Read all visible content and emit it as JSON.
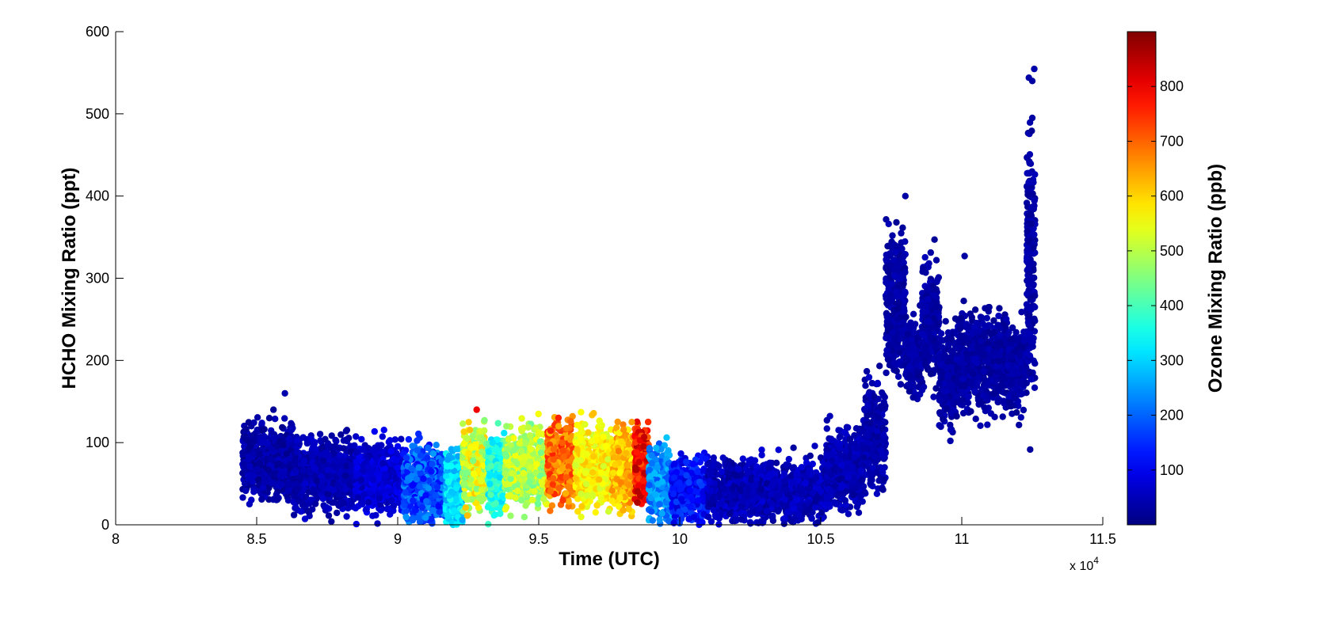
{
  "chart_data": {
    "type": "scatter",
    "xlabel": "Time (UTC)",
    "ylabel": "HCHO Mixing Ratio (ppt)",
    "x_multiplier_label": "x 10",
    "x_multiplier_exponent": "4",
    "xlim": [
      80000,
      115000
    ],
    "ylim": [
      0,
      600
    ],
    "x_ticks": [
      80000,
      85000,
      90000,
      95000,
      100000,
      105000,
      110000,
      115000
    ],
    "x_tick_labels": [
      "8",
      "8.5",
      "9",
      "9.5",
      "10",
      "10.5",
      "11",
      "11.5"
    ],
    "y_ticks": [
      0,
      100,
      200,
      300,
      400,
      500,
      600
    ],
    "y_tick_labels": [
      "0",
      "100",
      "200",
      "300",
      "400",
      "500",
      "600"
    ],
    "grid": false,
    "colorbar": {
      "label": "Ozone Mixing Ratio (ppb)",
      "range": [
        0,
        900
      ],
      "colormap": "jet",
      "ticks": [
        100,
        200,
        300,
        400,
        500,
        600,
        700,
        800
      ],
      "tick_labels": [
        "100",
        "200",
        "300",
        "400",
        "500",
        "600",
        "700",
        "800"
      ],
      "position": "right"
    },
    "marker_color_encoding": "ozone",
    "segments": [
      {
        "x": [
          84500,
          86300
        ],
        "y_mean": 78,
        "y_spread": 28,
        "c_range": [
          10,
          60
        ],
        "density": 650
      },
      {
        "x": [
          86300,
          88500
        ],
        "y_mean": 62,
        "y_spread": 28,
        "c_range": [
          20,
          70
        ],
        "density": 700
      },
      {
        "x": [
          88500,
          90200
        ],
        "y_mean": 58,
        "y_spread": 28,
        "c_range": [
          40,
          110
        ],
        "density": 600
      },
      {
        "x": [
          90200,
          91700
        ],
        "y_mean": 50,
        "y_spread": 27,
        "c_range": [
          110,
          250
        ],
        "density": 520
      },
      {
        "x": [
          91700,
          92300
        ],
        "y_mean": 45,
        "y_spread": 30,
        "c_range": [
          250,
          360
        ],
        "density": 260
      },
      {
        "x": [
          92300,
          93200
        ],
        "y_mean": 70,
        "y_spread": 30,
        "c_range": [
          440,
          620
        ],
        "density": 380
      },
      {
        "x": [
          93200,
          93800
        ],
        "y_mean": 62,
        "y_spread": 30,
        "c_range": [
          300,
          420
        ],
        "density": 260
      },
      {
        "x": [
          93800,
          95300
        ],
        "y_mean": 70,
        "y_spread": 30,
        "c_range": [
          430,
          560
        ],
        "density": 560
      },
      {
        "x": [
          95300,
          96300
        ],
        "y_mean": 75,
        "y_spread": 30,
        "c_range": [
          620,
          760
        ],
        "density": 460
      },
      {
        "x": [
          96300,
          97600
        ],
        "y_mean": 72,
        "y_spread": 30,
        "c_range": [
          520,
          620
        ],
        "density": 520
      },
      {
        "x": [
          97600,
          98400
        ],
        "y_mean": 70,
        "y_spread": 30,
        "c_range": [
          560,
          680
        ],
        "density": 360
      },
      {
        "x": [
          98400,
          98900
        ],
        "y_mean": 75,
        "y_spread": 30,
        "c_range": [
          700,
          860
        ],
        "density": 220
      },
      {
        "x": [
          98900,
          99700
        ],
        "y_mean": 50,
        "y_spread": 26,
        "c_range": [
          180,
          290
        ],
        "density": 330
      },
      {
        "x": [
          99700,
          101000
        ],
        "y_mean": 42,
        "y_spread": 24,
        "c_range": [
          70,
          180
        ],
        "density": 480
      },
      {
        "x": [
          101000,
          105200
        ],
        "y_mean": 42,
        "y_spread": 24,
        "c_range": [
          20,
          80
        ],
        "density": 1100
      },
      {
        "x": [
          105200,
          106500
        ],
        "y_mean": 70,
        "y_spread": 30,
        "c_range": [
          20,
          70
        ],
        "density": 420
      },
      {
        "x": [
          106500,
          107300
        ],
        "y_mean": 110,
        "y_spread": 40,
        "c_range": [
          20,
          60
        ],
        "density": 260
      },
      {
        "x": [
          107300,
          108000
        ],
        "y_mean": 270,
        "y_spread": 55,
        "c_range": [
          15,
          50
        ],
        "density": 320
      },
      {
        "x": [
          108000,
          108600
        ],
        "y_mean": 205,
        "y_spread": 30,
        "c_range": [
          15,
          50
        ],
        "density": 240
      },
      {
        "x": [
          108600,
          109200
        ],
        "y_mean": 250,
        "y_spread": 45,
        "c_range": [
          15,
          50
        ],
        "density": 260
      },
      {
        "x": [
          109200,
          109800
        ],
        "y_mean": 175,
        "y_spread": 35,
        "c_range": [
          15,
          50
        ],
        "density": 240
      },
      {
        "x": [
          109800,
          111600
        ],
        "y_mean": 200,
        "y_spread": 38,
        "c_range": [
          15,
          50
        ],
        "density": 620
      },
      {
        "x": [
          111600,
          112300
        ],
        "y_mean": 190,
        "y_spread": 30,
        "c_range": [
          15,
          50
        ],
        "density": 260
      },
      {
        "x": [
          112300,
          112600
        ],
        "y_mean": 330,
        "y_spread": 100,
        "c_range": [
          15,
          50
        ],
        "density": 200
      }
    ],
    "highlights": [
      {
        "x": 86000,
        "y": 160,
        "c": 40
      },
      {
        "x": 92800,
        "y": 140,
        "c": 800
      },
      {
        "x": 95700,
        "y": 130,
        "c": 760
      },
      {
        "x": 96500,
        "y": 137,
        "c": 560
      },
      {
        "x": 98300,
        "y": 125,
        "c": 650
      },
      {
        "x": 108000,
        "y": 400,
        "c": 30
      },
      {
        "x": 109100,
        "y": 322,
        "c": 30
      },
      {
        "x": 110100,
        "y": 327,
        "c": 30
      },
      {
        "x": 112500,
        "y": 540,
        "c": 30
      },
      {
        "x": 112500,
        "y": 495,
        "c": 30
      }
    ]
  }
}
